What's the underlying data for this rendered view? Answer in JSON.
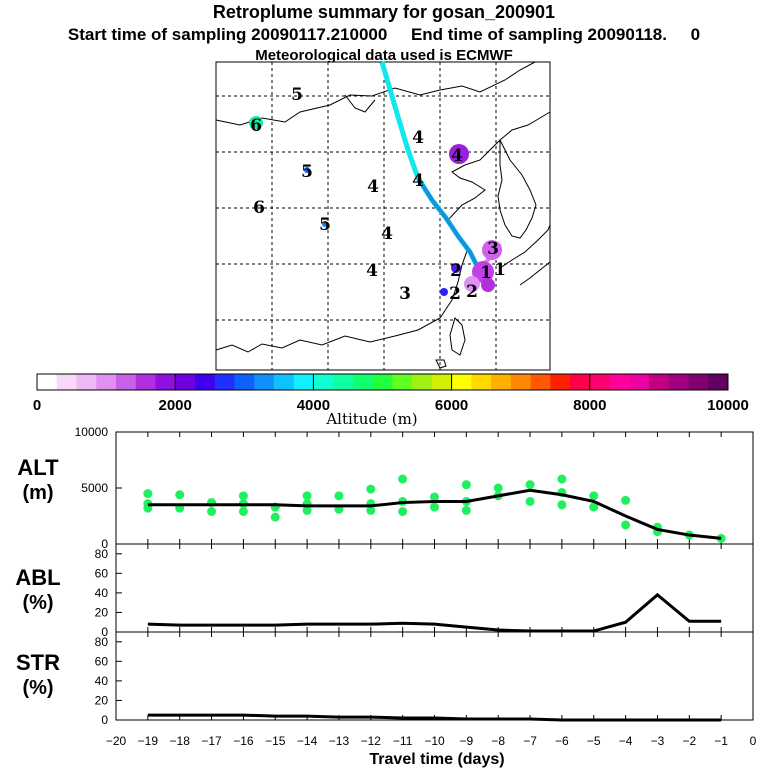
{
  "header": {
    "title": "Retroplume summary for gosan_200901",
    "start_label": "Start time of sampling 20090117.210000",
    "end_label": "End time of sampling 20090118.",
    "end_extra": "0",
    "met_label": "Meteorological data used is ECMWF"
  },
  "colorbar": {
    "label": "Altitude (m)",
    "ticks": [
      "0",
      "2000",
      "4000",
      "6000",
      "8000",
      "10000"
    ],
    "colors": [
      "#ffffff",
      "#f8d8f8",
      "#f0b8f8",
      "#e090f0",
      "#c860e8",
      "#b030e0",
      "#9010e0",
      "#7000e0",
      "#4000f0",
      "#2030ff",
      "#1060ff",
      "#1090ff",
      "#10c0ff",
      "#10f0ff",
      "#10ffd0",
      "#10ffa0",
      "#10ff70",
      "#20ff40",
      "#60ff20",
      "#a0f010",
      "#d0f000",
      "#ffff00",
      "#ffd800",
      "#ffb000",
      "#ff8800",
      "#ff5800",
      "#ff2000",
      "#ff0048",
      "#ff0070",
      "#ff0098",
      "#f000a0",
      "#c00080",
      "#a00080",
      "#800070",
      "#600060"
    ]
  },
  "map_labels": [
    {
      "text": "5",
      "color": "#000000"
    },
    {
      "text": "6",
      "color": "#000000"
    },
    {
      "text": "4",
      "color": "#000000"
    },
    {
      "text": "4",
      "color": "#000000"
    },
    {
      "text": "5",
      "color": "#000000"
    },
    {
      "text": "4",
      "color": "#000000"
    },
    {
      "text": "4",
      "color": "#000000"
    },
    {
      "text": "6",
      "color": "#000000"
    },
    {
      "text": "5",
      "color": "#000000"
    },
    {
      "text": "4",
      "color": "#000000"
    },
    {
      "text": "4",
      "color": "#000000"
    },
    {
      "text": "3",
      "color": "#000000"
    },
    {
      "text": "2",
      "color": "#000000"
    },
    {
      "text": "3",
      "color": "#000000"
    },
    {
      "text": "1",
      "color": "#000000"
    },
    {
      "text": "2",
      "color": "#000000"
    },
    {
      "text": "1",
      "color": "#000000"
    },
    {
      "text": "2",
      "color": "#000000"
    }
  ],
  "chart_data": [
    {
      "type": "line",
      "panel": "ALT",
      "ylabel_line1": "ALT",
      "ylabel_line2": "(m)",
      "ylim": [
        0,
        10000
      ],
      "yticks": [
        "0",
        "5000",
        "10000"
      ],
      "x": [
        -19,
        -18,
        -17,
        -16,
        -15,
        -14,
        -13,
        -12,
        -11,
        -10,
        -9,
        -8,
        -7,
        -6,
        -5,
        -4,
        -3,
        -2,
        -1
      ],
      "values": [
        3500,
        3500,
        3500,
        3500,
        3500,
        3400,
        3400,
        3400,
        3700,
        3800,
        3800,
        4300,
        4800,
        4400,
        3800,
        2500,
        1300,
        800,
        500
      ],
      "scatter_points": [
        {
          "x": -19,
          "y": 3200
        },
        {
          "x": -19,
          "y": 3600
        },
        {
          "x": -19,
          "y": 4500
        },
        {
          "x": -18,
          "y": 3200
        },
        {
          "x": -18,
          "y": 4400
        },
        {
          "x": -17,
          "y": 2900
        },
        {
          "x": -17,
          "y": 3700
        },
        {
          "x": -16,
          "y": 2900
        },
        {
          "x": -16,
          "y": 3600
        },
        {
          "x": -16,
          "y": 4300
        },
        {
          "x": -15,
          "y": 2400
        },
        {
          "x": -15,
          "y": 3300
        },
        {
          "x": -14,
          "y": 3000
        },
        {
          "x": -14,
          "y": 3600
        },
        {
          "x": -14,
          "y": 4300
        },
        {
          "x": -13,
          "y": 3100
        },
        {
          "x": -13,
          "y": 4300
        },
        {
          "x": -12,
          "y": 3000
        },
        {
          "x": -12,
          "y": 3600
        },
        {
          "x": -12,
          "y": 4900
        },
        {
          "x": -11,
          "y": 2900
        },
        {
          "x": -11,
          "y": 3800
        },
        {
          "x": -11,
          "y": 5800
        },
        {
          "x": -10,
          "y": 3300
        },
        {
          "x": -10,
          "y": 4200
        },
        {
          "x": -9,
          "y": 3000
        },
        {
          "x": -9,
          "y": 3800
        },
        {
          "x": -9,
          "y": 5300
        },
        {
          "x": -8,
          "y": 4300
        },
        {
          "x": -8,
          "y": 5000
        },
        {
          "x": -7,
          "y": 3800
        },
        {
          "x": -7,
          "y": 5300
        },
        {
          "x": -6,
          "y": 3500
        },
        {
          "x": -6,
          "y": 4600
        },
        {
          "x": -6,
          "y": 5800
        },
        {
          "x": -5,
          "y": 3300
        },
        {
          "x": -5,
          "y": 4300
        },
        {
          "x": -4,
          "y": 1700
        },
        {
          "x": -4,
          "y": 3900
        },
        {
          "x": -3,
          "y": 1100
        },
        {
          "x": -3,
          "y": 1500
        },
        {
          "x": -2,
          "y": 800
        },
        {
          "x": -1,
          "y": 500
        }
      ]
    },
    {
      "type": "line",
      "panel": "ABL",
      "ylabel_line1": "ABL",
      "ylabel_line2": "(%)",
      "ylim": [
        0,
        90
      ],
      "yticks": [
        "0",
        "20",
        "40",
        "60",
        "80"
      ],
      "x": [
        -19,
        -18,
        -17,
        -16,
        -15,
        -14,
        -13,
        -12,
        -11,
        -10,
        -9,
        -8,
        -7,
        -6,
        -5,
        -4,
        -3,
        -2,
        -1
      ],
      "values": [
        8,
        7,
        7,
        7,
        7,
        8,
        8,
        8,
        9,
        8,
        5,
        2,
        1,
        1,
        1,
        10,
        38,
        11,
        11
      ]
    },
    {
      "type": "line",
      "panel": "STR",
      "ylabel_line1": "STR",
      "ylabel_line2": "(%)",
      "ylim": [
        0,
        90
      ],
      "yticks": [
        "0",
        "20",
        "40",
        "60",
        "80"
      ],
      "x": [
        -19,
        -18,
        -17,
        -16,
        -15,
        -14,
        -13,
        -12,
        -11,
        -10,
        -9,
        -8,
        -7,
        -6,
        -5,
        -4,
        -3,
        -2,
        -1
      ],
      "values": [
        5,
        5,
        5,
        5,
        4,
        4,
        3,
        3,
        2,
        2,
        1,
        1,
        1,
        0,
        0,
        0,
        0,
        0,
        0
      ]
    },
    {
      "type": "axis",
      "xlabel": "Travel time (days)",
      "xlim": [
        -20,
        0
      ],
      "xticks": [
        "−20",
        "−19",
        "−18",
        "−17",
        "−16",
        "−15",
        "−14",
        "−13",
        "−12",
        "−11",
        "−10",
        "−9",
        "−8",
        "−7",
        "−6",
        "−5",
        "−4",
        "−3",
        "−2",
        "−1",
        "0"
      ]
    }
  ]
}
